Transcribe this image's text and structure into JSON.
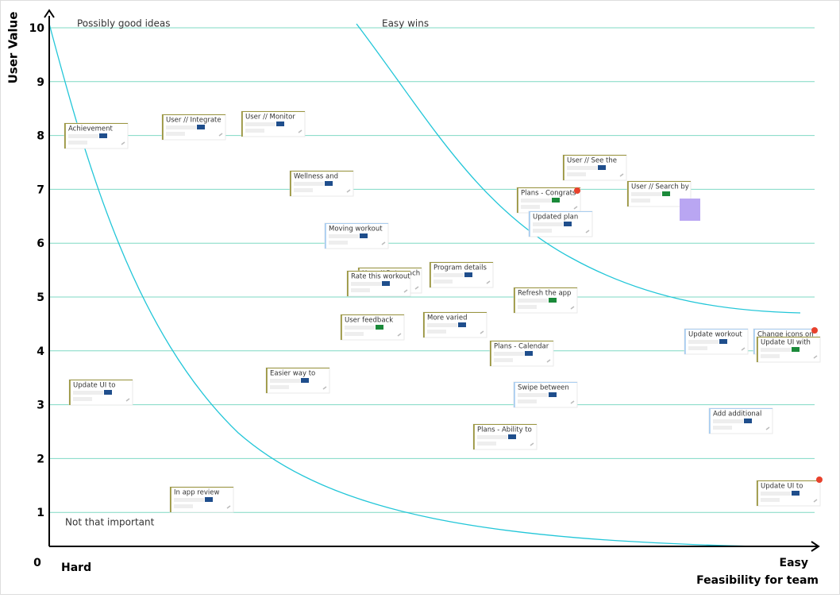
{
  "regions": {
    "top_left": "Possibly good ideas",
    "top_right": "Easy wins",
    "bottom_left": "Not that important"
  },
  "axes": {
    "y": {
      "title": "User Value",
      "ticks": [
        0,
        1,
        2,
        3,
        4,
        5,
        6,
        7,
        8,
        9,
        10
      ]
    },
    "x": {
      "title": "Feasibility for team",
      "start": "Hard",
      "end": "Easy"
    }
  },
  "cards": [
    {
      "title": "Achievement"
    },
    {
      "title": "User // Integrate"
    },
    {
      "title": "User // Monitor"
    },
    {
      "title": "Wellness and"
    },
    {
      "title": "Moving workout"
    },
    {
      "title": "User // See the"
    },
    {
      "title": "Plans - Congrats"
    },
    {
      "title": "Updated plan"
    },
    {
      "title": "User // Search by"
    },
    {
      "title": "User // Rate each"
    },
    {
      "title": "Rate this workout"
    },
    {
      "title": "Program details"
    },
    {
      "title": "Refresh the app"
    },
    {
      "title": "User feedback"
    },
    {
      "title": "More varied"
    },
    {
      "title": "Update workout"
    },
    {
      "title": "Change icons on"
    },
    {
      "title": "Update UI with"
    },
    {
      "title": "Plans - Calendar"
    },
    {
      "title": "Easier way to"
    },
    {
      "title": "Update UI to"
    },
    {
      "title": "Swipe between"
    },
    {
      "title": "Add additional"
    },
    {
      "title": "Plans - Ability to"
    },
    {
      "title": "Update UI to"
    },
    {
      "title": "In app review"
    }
  ]
}
